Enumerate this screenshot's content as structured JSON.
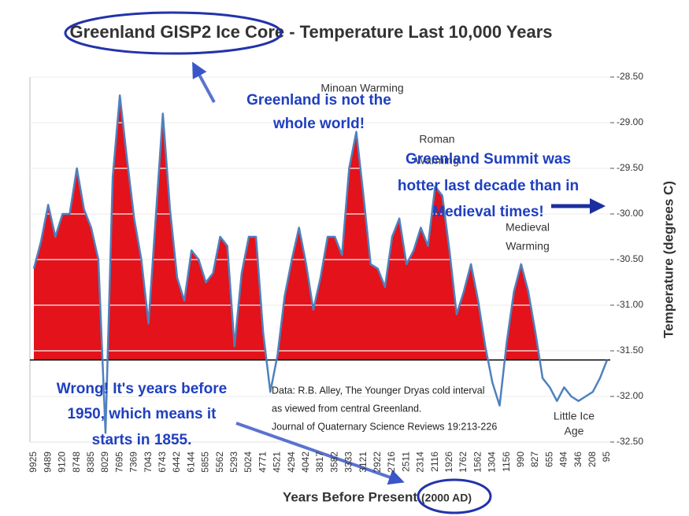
{
  "chart_data": {
    "type": "area",
    "title": "Greenland GISP2 Ice Core - Temperature Last 10,000 Years",
    "x_label": "Years Before Present",
    "x_label_note": "(2000 AD)",
    "y_label": "Temperature (degrees C)",
    "categories": [
      "9925",
      null,
      "9489",
      null,
      "9120",
      null,
      "8748",
      null,
      "8385",
      null,
      "8029",
      null,
      "7695",
      null,
      "7369",
      null,
      "7043",
      null,
      "6743",
      null,
      "6442",
      null,
      "6144",
      null,
      "5855",
      null,
      "5562",
      null,
      "5293",
      null,
      "5024",
      null,
      "4771",
      null,
      "4521",
      null,
      "4294",
      null,
      "4042",
      null,
      "3817",
      null,
      "3582",
      null,
      "3333",
      null,
      "3121",
      null,
      "2922",
      null,
      "2716",
      null,
      "2511",
      null,
      "2314",
      null,
      "2116",
      null,
      "1926",
      null,
      "1762",
      null,
      "1562",
      null,
      "1304",
      null,
      "1156",
      null,
      "990",
      null,
      "827",
      null,
      "655",
      null,
      "494",
      null,
      "346",
      null,
      "208",
      null,
      "95"
    ],
    "values": [
      -30.6,
      -30.3,
      -29.9,
      -30.25,
      -30.0,
      -30.0,
      -29.5,
      -29.95,
      -30.15,
      -30.5,
      -32.4,
      -29.6,
      -28.7,
      -29.4,
      -30.05,
      -30.5,
      -31.2,
      -30.05,
      -28.9,
      -29.95,
      -30.7,
      -30.95,
      -30.4,
      -30.5,
      -30.75,
      -30.65,
      -30.25,
      -30.35,
      -31.45,
      -30.65,
      -30.25,
      -30.25,
      -31.3,
      -31.95,
      -31.55,
      -30.9,
      -30.5,
      -30.15,
      -30.55,
      -31.05,
      -30.7,
      -30.25,
      -30.25,
      -30.45,
      -29.5,
      -29.1,
      -29.8,
      -30.55,
      -30.6,
      -30.8,
      -30.25,
      -30.05,
      -30.55,
      -30.4,
      -30.15,
      -30.35,
      -29.7,
      -29.8,
      -30.4,
      -31.1,
      -30.85,
      -30.55,
      -30.95,
      -31.45,
      -31.85,
      -32.1,
      -31.4,
      -30.85,
      -30.55,
      -30.85,
      -31.3,
      -31.8,
      -31.9,
      -32.05,
      -31.9,
      -32.0,
      -32.05,
      -32.0,
      -31.95,
      -31.8,
      -31.6
    ],
    "color": "#e3121b",
    "line_color": "#4f81bd",
    "baseline": -31.6,
    "ylim": [
      -32.5,
      -28.5
    ],
    "yticks": [
      {
        "value": -28.5,
        "label": "-28.50"
      },
      {
        "value": -29,
        "label": "-29.00"
      },
      {
        "value": -29.5,
        "label": "-29.50"
      },
      {
        "value": -30,
        "label": "-30.00"
      },
      {
        "value": -30.5,
        "label": "-30.50"
      },
      {
        "value": -31,
        "label": "-31.00"
      },
      {
        "value": -31.5,
        "label": "-31.50"
      },
      {
        "value": -32,
        "label": "-32.00"
      },
      {
        "value": -32.5,
        "label": "-32.50"
      }
    ],
    "grid": true,
    "chart_labels": [
      [
        "Minoan Warming"
      ],
      [
        "Roman",
        "Warming"
      ],
      [
        "Medieval",
        "Warming"
      ],
      [
        "Little Ice",
        "Age"
      ]
    ],
    "source": [
      "Data: R.B. Alley,  The Younger Dryas cold interval",
      "as viewed from central Greenland.",
      "Journal of Quaternary  Science Reviews 19:213-226"
    ],
    "overlay_notes": [
      [
        "Greenland is not the",
        "whole world!"
      ],
      [
        "Greenland Summit was",
        "hotter last decade than in",
        "Medieval times!"
      ],
      [
        "Wrong! It's years before",
        "1950, which means it",
        "starts in 1855."
      ]
    ]
  }
}
